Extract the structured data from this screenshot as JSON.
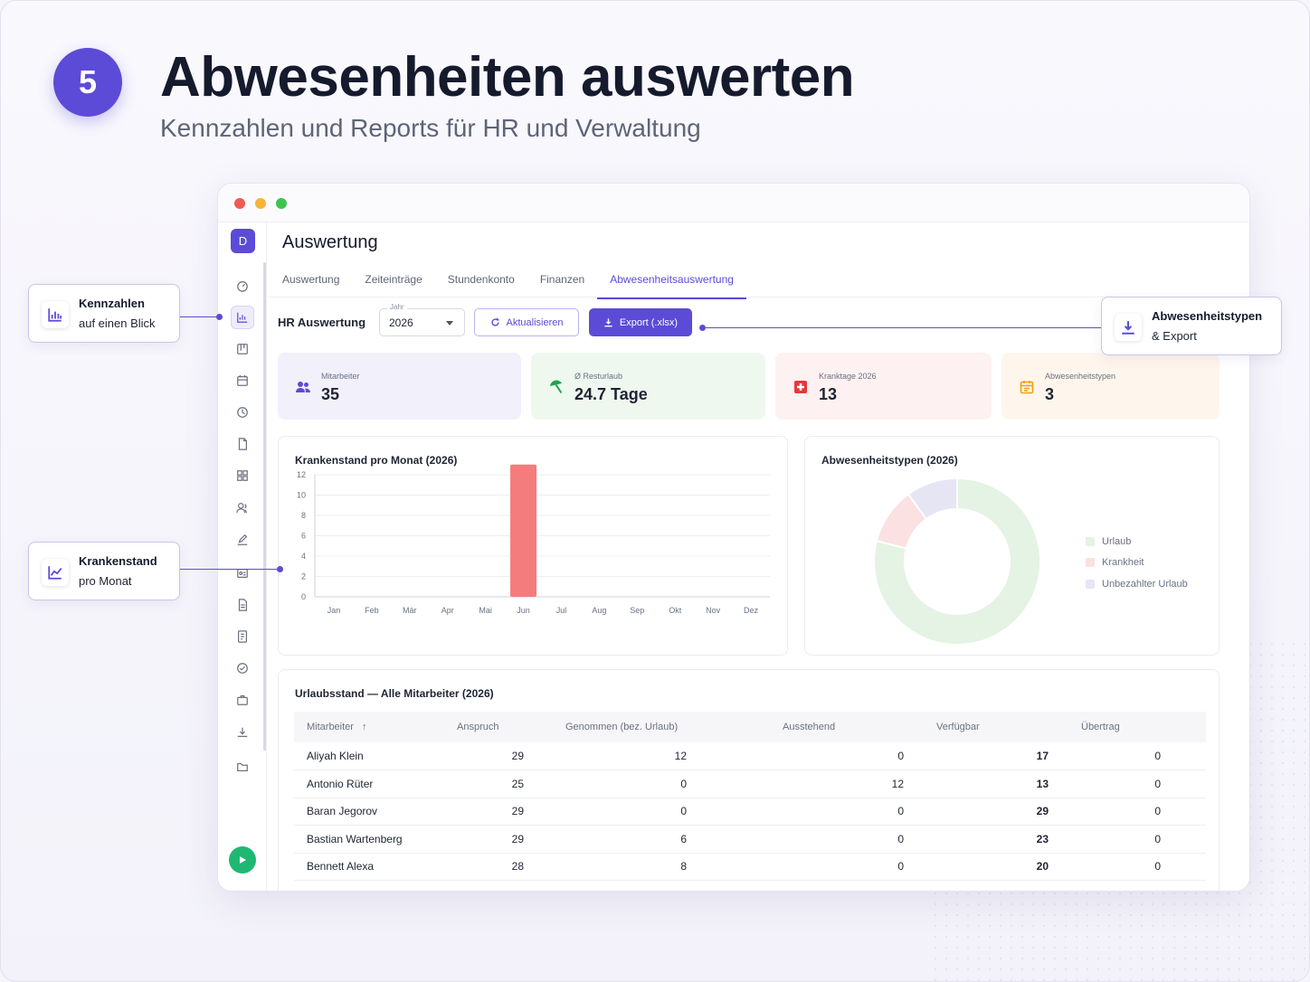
{
  "step": {
    "number": "5",
    "title": "Abwesenheiten auswerten",
    "subtitle": "Kennzahlen und Reports für HR und Verwaltung"
  },
  "callouts": {
    "kennzahlen": {
      "line1": "Kennzahlen",
      "line2": "auf einen Blick",
      "icon": "bar-chart-icon"
    },
    "krankenstand": {
      "line1": "Krankenstand",
      "line2": "pro Monat",
      "icon": "line-chart-icon"
    },
    "export": {
      "line1": "Abwesenheitstypen",
      "line2": "& Export",
      "icon": "download-icon"
    }
  },
  "app": {
    "user_initial": "D",
    "page_title": "Auswertung",
    "tabs": [
      {
        "label": "Auswertung",
        "active": false
      },
      {
        "label": "Zeiteinträge",
        "active": false
      },
      {
        "label": "Stundenkonto",
        "active": false
      },
      {
        "label": "Finanzen",
        "active": false
      },
      {
        "label": "Abwesenheitsauswertung",
        "active": true
      }
    ],
    "toolbar": {
      "label": "HR Auswertung",
      "year_legend": "Jahr",
      "year_value": "2026",
      "refresh_label": "Aktualisieren",
      "export_label": "Export (.xlsx)"
    },
    "kpis": [
      {
        "label": "Mitarbeiter",
        "value": "35",
        "icon": "people-icon",
        "bg": "#f1f0fb",
        "color": "#5b4bd6"
      },
      {
        "label": "Ø Resturlaub",
        "value": "24.7 Tage",
        "icon": "beach-umbrella-icon",
        "bg": "#eef8ef",
        "color": "#1fa34a"
      },
      {
        "label": "Kranktage 2026",
        "value": "13",
        "icon": "medical-cross-icon",
        "bg": "#fdf1f1",
        "color": "#e5383b"
      },
      {
        "label": "Abwesenheitstypen",
        "value": "3",
        "icon": "calendar-icon",
        "bg": "#fef6ec",
        "color": "#f59e0b"
      }
    ],
    "bar_card_title": "Krankenstand pro Monat (2026)",
    "donut_card_title": "Abwesenheitstypen (2026)",
    "table": {
      "title": "Urlaubsstand — Alle Mitarbeiter (2026)",
      "columns": [
        "Mitarbeiter",
        "Anspruch",
        "Genommen (bez. Urlaub)",
        "Ausstehend",
        "Verfügbar",
        "Übertrag"
      ],
      "rows": [
        [
          "Aliyah Klein",
          "29",
          "12",
          "0",
          "17",
          "0"
        ],
        [
          "Antonio Rüter",
          "25",
          "0",
          "12",
          "13",
          "0"
        ],
        [
          "Baran Jegorov",
          "29",
          "0",
          "0",
          "29",
          "0"
        ],
        [
          "Bastian Wartenberg",
          "29",
          "6",
          "0",
          "23",
          "0"
        ],
        [
          "Bennett Alexa",
          "28",
          "8",
          "0",
          "20",
          "0"
        ]
      ]
    }
  },
  "chart_data": [
    {
      "type": "bar",
      "title": "Krankenstand pro Monat (2026)",
      "categories": [
        "Jan",
        "Feb",
        "Mär",
        "Apr",
        "Mai",
        "Jun",
        "Jul",
        "Aug",
        "Sep",
        "Okt",
        "Nov",
        "Dez"
      ],
      "values": [
        0,
        0,
        0,
        0,
        0,
        13,
        0,
        0,
        0,
        0,
        0,
        0
      ],
      "yticks": [
        "0",
        "2",
        "4",
        "6",
        "8",
        "10",
        "12"
      ],
      "ylim": [
        0,
        13
      ],
      "grid": true,
      "bar_color": "#f47c7c"
    },
    {
      "type": "pie",
      "variant": "donut",
      "title": "Abwesenheitstypen (2026)",
      "labels": [
        "Urlaub",
        "Krankheit",
        "Unbezahlter Urlaub"
      ],
      "values": [
        79,
        11,
        10
      ],
      "colors": [
        "#e4f3e4",
        "#fbe1e1",
        "#e6e5f4"
      ],
      "legend": "right"
    }
  ]
}
